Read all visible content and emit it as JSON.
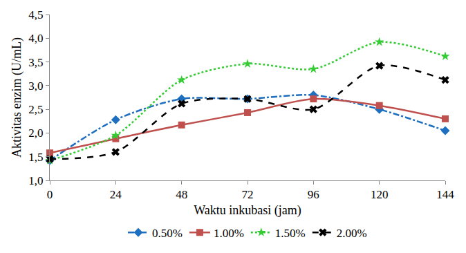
{
  "chart_data": {
    "type": "line",
    "x_label": "Waktu inkubasi (jam)",
    "y_label": "Aktivitas enzim (U/mL)",
    "x": [
      0,
      24,
      48,
      72,
      96,
      120,
      144
    ],
    "xlim": [
      0,
      144
    ],
    "xticks": [
      0,
      24,
      48,
      72,
      96,
      120,
      144
    ],
    "ylim": [
      1.0,
      4.5
    ],
    "yticks": [
      {
        "value": 1.0,
        "label": "1,0"
      },
      {
        "value": 1.5,
        "label": "1,5"
      },
      {
        "value": 2.0,
        "label": "2,0"
      },
      {
        "value": 2.5,
        "label": "2,5"
      },
      {
        "value": 3.0,
        "label": "3,0"
      },
      {
        "value": 3.5,
        "label": "3,5"
      },
      {
        "value": 4.0,
        "label": "4,0"
      },
      {
        "value": 4.5,
        "label": "4,5"
      }
    ],
    "grid": false,
    "legend": "bottom",
    "series": [
      {
        "name": "0.50%",
        "color": "#1f6fc0",
        "marker": "diamond",
        "line_style": "dashdot",
        "values": [
          1.42,
          2.28,
          2.72,
          2.72,
          2.8,
          2.5,
          2.05
        ]
      },
      {
        "name": "1.00%",
        "color": "#c0504d",
        "marker": "square",
        "line_style": "solid",
        "values": [
          1.58,
          1.88,
          2.17,
          2.43,
          2.72,
          2.58,
          2.3
        ]
      },
      {
        "name": "1.50%",
        "color": "#33cc33",
        "marker": "star",
        "line_style": "dot",
        "values": [
          1.42,
          1.95,
          3.12,
          3.46,
          3.35,
          3.92,
          3.62
        ]
      },
      {
        "name": "2.00%",
        "color": "#000000",
        "marker": "x",
        "line_style": "dash",
        "values": [
          1.45,
          1.6,
          2.62,
          2.72,
          2.5,
          3.42,
          3.12
        ]
      }
    ]
  }
}
